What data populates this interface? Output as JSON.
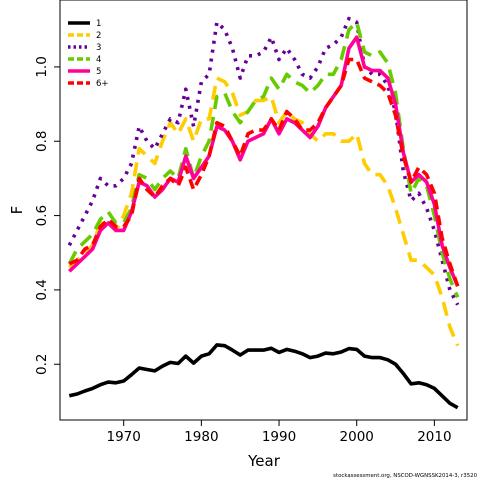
{
  "chart_data": {
    "type": "line",
    "xlabel": "Year",
    "ylabel": "F",
    "xlim": [
      1961.8,
      2014.2
    ],
    "ylim": [
      0.05,
      1.18
    ],
    "x_ticks": [
      1970,
      1980,
      1990,
      2000,
      2010
    ],
    "y_ticks": [
      0.2,
      0.4,
      0.6,
      0.8,
      1.0
    ],
    "x_tick_labels": [
      "1970",
      "1980",
      "1990",
      "2000",
      "2010"
    ],
    "y_tick_labels": [
      "0.2",
      "0.4",
      "0.6",
      "0.8",
      "1.0"
    ],
    "legend_position": "top-left",
    "credit": "stockassessment.org, NSCOD-WGNSSK2014-3, r3520",
    "x": [
      1963,
      1964,
      1965,
      1966,
      1967,
      1968,
      1969,
      1970,
      1971,
      1972,
      1973,
      1974,
      1975,
      1976,
      1977,
      1978,
      1979,
      1980,
      1981,
      1982,
      1983,
      1984,
      1985,
      1986,
      1987,
      1988,
      1989,
      1990,
      1991,
      1992,
      1993,
      1994,
      1995,
      1996,
      1997,
      1998,
      1999,
      2000,
      2001,
      2002,
      2003,
      2004,
      2005,
      2006,
      2007,
      2008,
      2009,
      2010,
      2011,
      2012,
      2013
    ],
    "series": [
      {
        "name": "1",
        "color": "#000000",
        "dash": "solid",
        "values": [
          0.115,
          0.12,
          0.128,
          0.135,
          0.145,
          0.152,
          0.15,
          0.155,
          0.172,
          0.19,
          0.186,
          0.182,
          0.195,
          0.205,
          0.202,
          0.222,
          0.203,
          0.222,
          0.228,
          0.252,
          0.25,
          0.238,
          0.225,
          0.238,
          0.238,
          0.238,
          0.243,
          0.232,
          0.24,
          0.235,
          0.228,
          0.218,
          0.222,
          0.23,
          0.228,
          0.233,
          0.242,
          0.24,
          0.222,
          0.218,
          0.218,
          0.212,
          0.2,
          0.175,
          0.147,
          0.15,
          0.145,
          0.135,
          0.115,
          0.095,
          0.083
        ]
      },
      {
        "name": "2",
        "color": "#FFCC00",
        "dash": "long",
        "values": [
          0.46,
          0.48,
          0.5,
          0.52,
          0.58,
          0.58,
          0.56,
          0.6,
          0.66,
          0.78,
          0.76,
          0.74,
          0.8,
          0.85,
          0.82,
          0.86,
          0.8,
          0.86,
          0.86,
          0.97,
          0.96,
          0.93,
          0.87,
          0.88,
          0.91,
          0.91,
          0.92,
          0.85,
          0.88,
          0.86,
          0.85,
          0.82,
          0.8,
          0.82,
          0.82,
          0.8,
          0.8,
          0.82,
          0.74,
          0.71,
          0.71,
          0.68,
          0.62,
          0.55,
          0.48,
          0.48,
          0.46,
          0.44,
          0.38,
          0.3,
          0.25
        ]
      },
      {
        "name": "3",
        "color": "#660099",
        "dash": "dot",
        "values": [
          0.52,
          0.56,
          0.6,
          0.64,
          0.7,
          0.68,
          0.68,
          0.7,
          0.74,
          0.84,
          0.8,
          0.78,
          0.82,
          0.86,
          0.85,
          0.94,
          0.84,
          0.96,
          0.98,
          1.12,
          1.1,
          1.05,
          0.97,
          1.03,
          1.03,
          1.04,
          1.08,
          1.02,
          1.05,
          1.02,
          0.98,
          0.97,
          1.0,
          1.05,
          1.06,
          1.08,
          1.13,
          1.12,
          1.0,
          0.98,
          0.98,
          0.95,
          0.88,
          0.72,
          0.64,
          0.66,
          0.62,
          0.56,
          0.48,
          0.4,
          0.36
        ]
      },
      {
        "name": "4",
        "color": "#66CC00",
        "dash": "long",
        "values": [
          0.47,
          0.51,
          0.53,
          0.55,
          0.59,
          0.61,
          0.58,
          0.58,
          0.62,
          0.71,
          0.7,
          0.67,
          0.7,
          0.72,
          0.7,
          0.78,
          0.7,
          0.76,
          0.8,
          0.92,
          0.93,
          0.88,
          0.85,
          0.88,
          0.91,
          0.92,
          0.97,
          0.94,
          0.98,
          0.96,
          0.95,
          0.93,
          0.95,
          0.98,
          0.98,
          1.02,
          1.1,
          1.12,
          1.04,
          1.03,
          1.04,
          1.01,
          0.93,
          0.78,
          0.66,
          0.7,
          0.68,
          0.6,
          0.5,
          0.43,
          0.38
        ]
      },
      {
        "name": "5",
        "color": "#FF0099",
        "dash": "solid",
        "values": [
          0.45,
          0.47,
          0.49,
          0.51,
          0.56,
          0.58,
          0.56,
          0.56,
          0.61,
          0.69,
          0.68,
          0.65,
          0.67,
          0.7,
          0.69,
          0.76,
          0.7,
          0.73,
          0.76,
          0.84,
          0.83,
          0.8,
          0.75,
          0.8,
          0.81,
          0.82,
          0.86,
          0.82,
          0.86,
          0.85,
          0.83,
          0.81,
          0.84,
          0.89,
          0.92,
          0.95,
          1.05,
          1.08,
          1.0,
          0.99,
          0.99,
          0.97,
          0.9,
          0.77,
          0.69,
          0.71,
          0.69,
          0.63,
          0.52,
          0.46,
          0.41
        ]
      },
      {
        "name": "6+",
        "color": "#FF0000",
        "dash": "dash",
        "values": [
          0.47,
          0.48,
          0.51,
          0.52,
          0.57,
          0.59,
          0.57,
          0.57,
          0.6,
          0.7,
          0.67,
          0.65,
          0.68,
          0.7,
          0.68,
          0.73,
          0.67,
          0.71,
          0.76,
          0.85,
          0.84,
          0.8,
          0.76,
          0.82,
          0.83,
          0.83,
          0.86,
          0.83,
          0.88,
          0.86,
          0.83,
          0.83,
          0.85,
          0.89,
          0.92,
          0.95,
          1.02,
          1.02,
          0.97,
          0.96,
          0.95,
          0.93,
          0.87,
          0.76,
          0.69,
          0.73,
          0.71,
          0.66,
          0.54,
          0.47,
          0.41
        ]
      }
    ]
  }
}
